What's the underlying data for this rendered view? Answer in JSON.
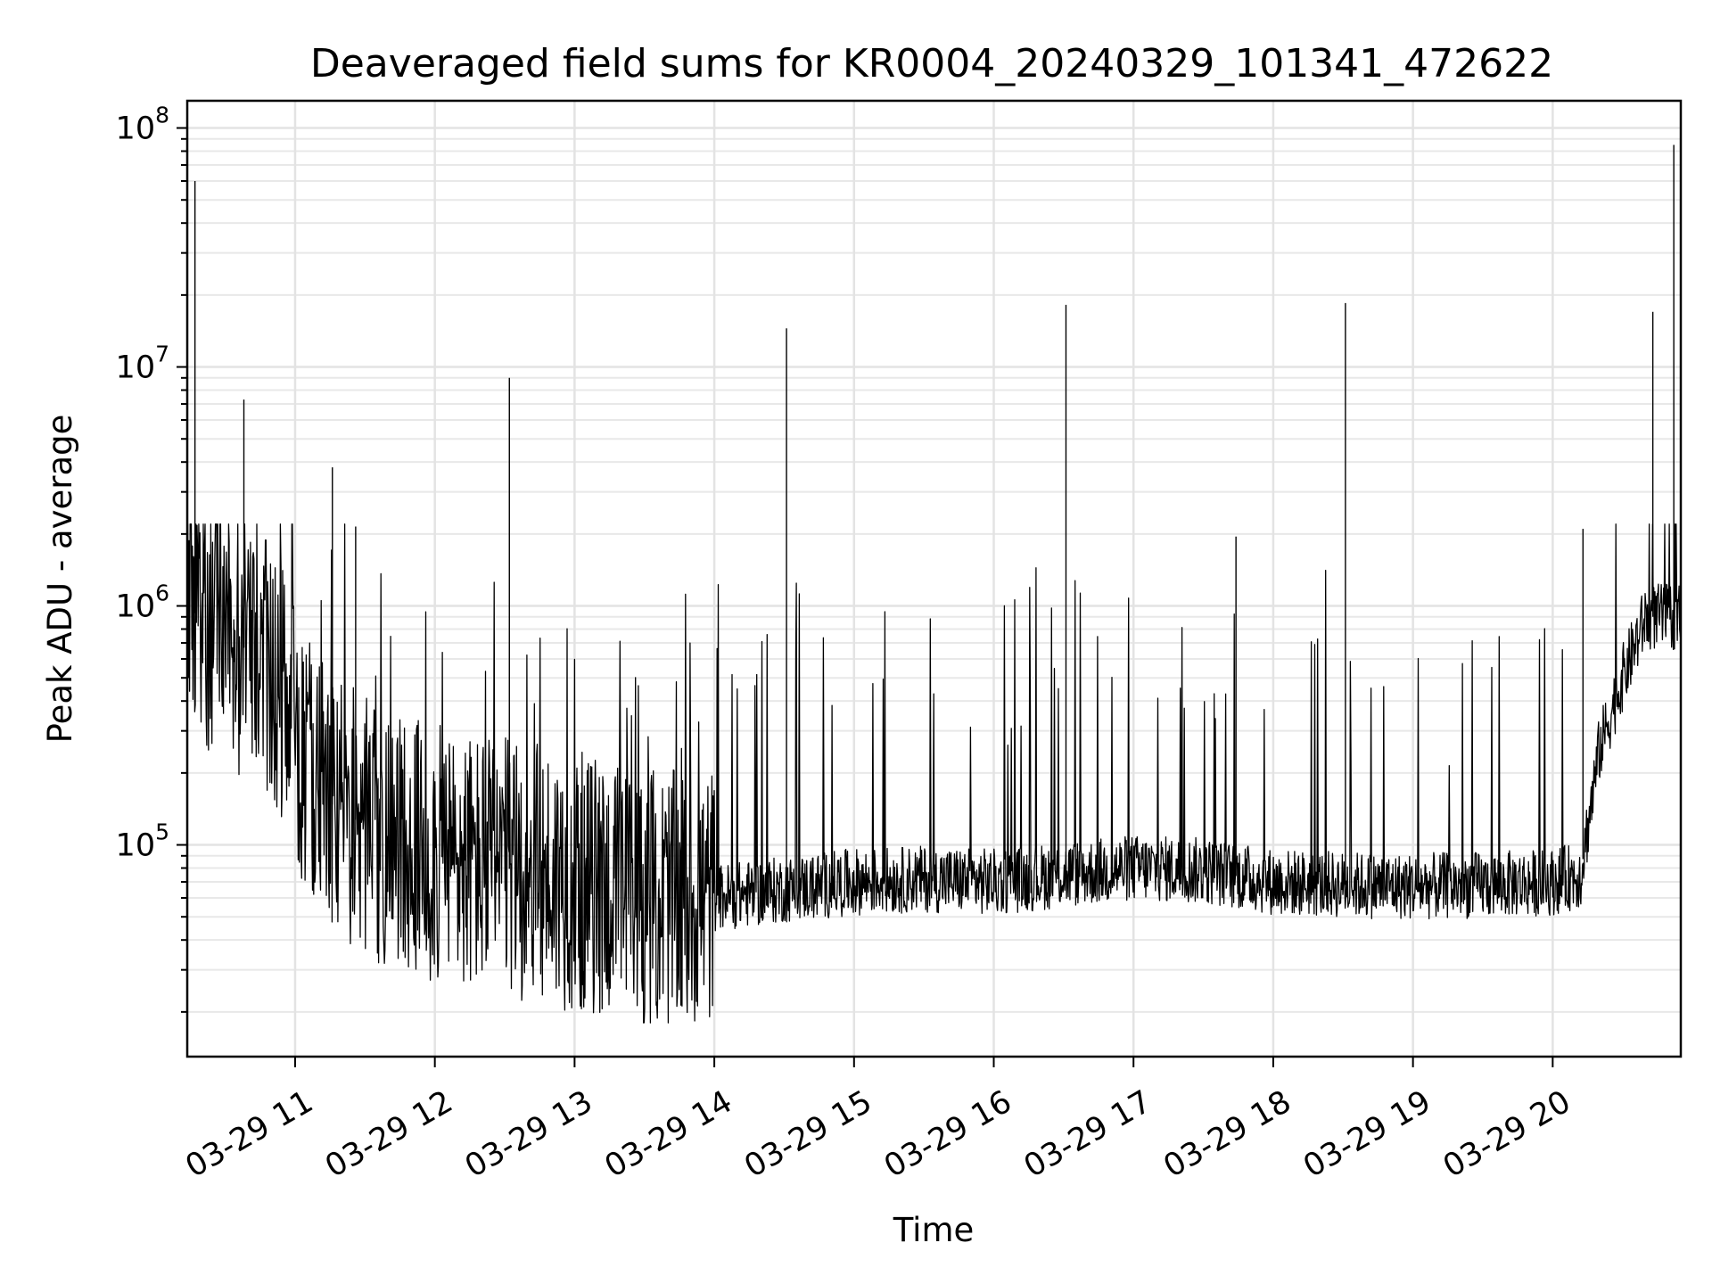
{
  "chart_data": {
    "type": "line",
    "title": "Deaveraged field sums for KR0004_20240329_101341_472622",
    "xlabel": "Time",
    "ylabel": "Peak ADU - average",
    "x_type": "datetime",
    "xlim": [
      "2024-03-29T10:13:41",
      "2024-03-29T20:55:00"
    ],
    "ylim": [
      13000,
      130000000
    ],
    "y_scale": "log",
    "grid": "both",
    "x_ticks": [
      {
        "value": "2024-03-29T11:00:00",
        "label": "03-29 11"
      },
      {
        "value": "2024-03-29T12:00:00",
        "label": "03-29 12"
      },
      {
        "value": "2024-03-29T13:00:00",
        "label": "03-29 13"
      },
      {
        "value": "2024-03-29T14:00:00",
        "label": "03-29 14"
      },
      {
        "value": "2024-03-29T15:00:00",
        "label": "03-29 15"
      },
      {
        "value": "2024-03-29T16:00:00",
        "label": "03-29 16"
      },
      {
        "value": "2024-03-29T17:00:00",
        "label": "03-29 17"
      },
      {
        "value": "2024-03-29T18:00:00",
        "label": "03-29 18"
      },
      {
        "value": "2024-03-29T19:00:00",
        "label": "03-29 19"
      },
      {
        "value": "2024-03-29T20:00:00",
        "label": "03-29 20"
      }
    ],
    "y_ticks": [
      {
        "value": 100000,
        "base": "10",
        "exp": "5"
      },
      {
        "value": 1000000,
        "base": "10",
        "exp": "6"
      },
      {
        "value": 10000000,
        "base": "10",
        "exp": "7"
      },
      {
        "value": 100000000,
        "base": "10",
        "exp": "8"
      }
    ],
    "line_color": "#000000",
    "series": [
      {
        "x": [
          "2024-03-29T10:13:41",
          "2024-03-29T10:15:00",
          "2024-03-29T10:18:00",
          "2024-03-29T10:25:00",
          "2024-03-29T10:28:00",
          "2024-03-29T10:31:00",
          "2024-03-29T10:35:00",
          "2024-03-29T10:45:00",
          "2024-03-29T10:55:00",
          "2024-03-29T11:02:00",
          "2024-03-29T11:08:00",
          "2024-03-29T11:15:00",
          "2024-03-29T11:30:00",
          "2024-03-29T11:45:00",
          "2024-03-29T12:00:00",
          "2024-03-29T12:15:00",
          "2024-03-29T12:30:00",
          "2024-03-29T12:45:00",
          "2024-03-29T13:00:00",
          "2024-03-29T13:15:00",
          "2024-03-29T13:30:00",
          "2024-03-29T13:45:00",
          "2024-03-29T14:00:00",
          "2024-03-29T14:30:00",
          "2024-03-29T15:00:00",
          "2024-03-29T15:30:00",
          "2024-03-29T16:00:00",
          "2024-03-29T16:30:00",
          "2024-03-29T17:00:00",
          "2024-03-29T17:30:00",
          "2024-03-29T18:00:00",
          "2024-03-29T18:30:00",
          "2024-03-29T19:00:00",
          "2024-03-29T19:30:00",
          "2024-03-29T20:00:00",
          "2024-03-29T20:12:00",
          "2024-03-29T20:20:00",
          "2024-03-29T20:30:00",
          "2024-03-29T20:40:00",
          "2024-03-29T20:55:00"
        ],
        "y": [
          1200000,
          1000000,
          900000,
          800000,
          1500000,
          900000,
          700000,
          600000,
          400000,
          250000,
          200000,
          150000,
          120000,
          100000,
          90000,
          85000,
          80000,
          75000,
          70000,
          65000,
          60000,
          58000,
          60000,
          65000,
          70000,
          72000,
          70000,
          75000,
          80000,
          78000,
          70000,
          68000,
          67000,
          68000,
          70000,
          75000,
          250000,
          500000,
          900000,
          900000
        ],
        "spikes": [
          {
            "x": "2024-03-29T10:17:00",
            "y": 60000000
          },
          {
            "x": "2024-03-29T10:38:00",
            "y": 7300000
          },
          {
            "x": "2024-03-29T11:16:00",
            "y": 3800000
          },
          {
            "x": "2024-03-29T11:26:00",
            "y": 2150000
          },
          {
            "x": "2024-03-29T12:32:00",
            "y": 9000000
          },
          {
            "x": "2024-03-29T14:31:00",
            "y": 14500000
          },
          {
            "x": "2024-03-29T16:31:00",
            "y": 18200000
          },
          {
            "x": "2024-03-29T17:44:00",
            "y": 1950000
          },
          {
            "x": "2024-03-29T18:31:00",
            "y": 18500000
          },
          {
            "x": "2024-03-29T20:13:00",
            "y": 2100000
          },
          {
            "x": "2024-03-29T20:43:00",
            "y": 17000000
          },
          {
            "x": "2024-03-29T20:52:00",
            "y": 85000000
          }
        ]
      }
    ]
  }
}
